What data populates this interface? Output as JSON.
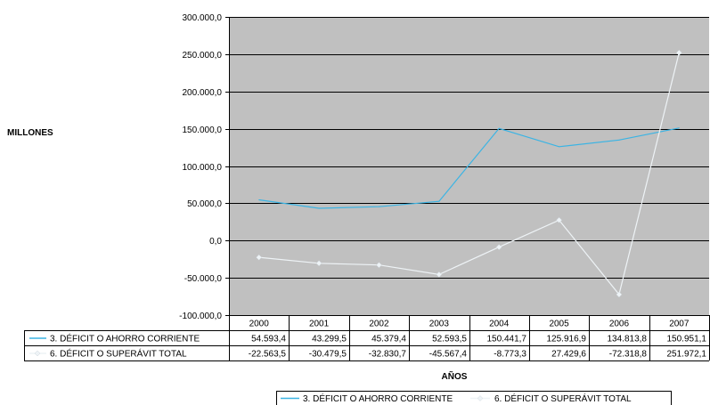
{
  "chart_data": {
    "type": "line",
    "ylabel": "MILLONES",
    "xlabel": "AÑOS",
    "x": [
      "2000",
      "2001",
      "2002",
      "2003",
      "2004",
      "2005",
      "2006",
      "2007"
    ],
    "ylim": [
      -100000,
      300000
    ],
    "yticks": [
      "300.000,0",
      "250.000,0",
      "200.000,0",
      "150.000,0",
      "100.000,0",
      "50.000,0",
      "0,0",
      "-50.000,0",
      "-100.000,0"
    ],
    "yticks_values": [
      300000,
      250000,
      200000,
      150000,
      100000,
      50000,
      0,
      -50000,
      -100000
    ],
    "grid": true,
    "legend_position": "bottom-right",
    "series": [
      {
        "name": "3. DÉFICIT O AHORRO CORRIENTE",
        "values": [
          54593.4,
          43299.5,
          45379.4,
          52593.5,
          150441.7,
          125916.9,
          134813.8,
          150951.1
        ],
        "labels": [
          "54.593,4",
          "43.299,5",
          "45.379,4",
          "52.593,5",
          "150.441,7",
          "125.916,9",
          "134.813,8",
          "150.951,1"
        ],
        "color": "#3ab4e4"
      },
      {
        "name": "6. DÉFICIT O SUPERÁVIT TOTAL",
        "values": [
          -22563.5,
          -30479.5,
          -32830.7,
          -45567.4,
          -8773.3,
          27429.6,
          -72318.8,
          251972.1
        ],
        "labels": [
          "-22.563,5",
          "-30.479,5",
          "-32.830,7",
          "-45.567,4",
          "-8.773,3",
          "27.429,6",
          "-72.318,8",
          "251.972,1"
        ],
        "color": "#eef3f6"
      }
    ],
    "colors": {
      "plot_background": "#c0c0c0",
      "gridline": "#000000"
    }
  }
}
